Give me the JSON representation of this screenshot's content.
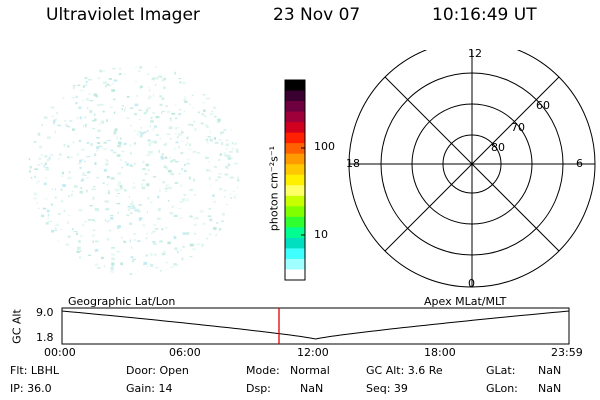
{
  "header": {
    "instrument": "Ultraviolet Imager",
    "date": "23 Nov 07",
    "time": "10:16:49 UT"
  },
  "colorbar": {
    "unit_label": "photon cm⁻²s⁻¹",
    "tick_100": "100",
    "tick_10": "10",
    "colors": [
      "#000000",
      "#3a0030",
      "#6e0040",
      "#a0003a",
      "#d0001e",
      "#ff2000",
      "#ff6000",
      "#ff9a00",
      "#ffc800",
      "#fff000",
      "#ffff66",
      "#c8ff00",
      "#80ff00",
      "#30ff30",
      "#00ff90",
      "#00e0c0",
      "#40ffff",
      "#a0ffff",
      "#ffffff"
    ]
  },
  "polar_grid": {
    "mlt_labels": {
      "top": "12",
      "bottom": "0",
      "left": "18",
      "right": "6"
    },
    "lat_labels": [
      "60",
      "70",
      "80"
    ]
  },
  "track": {
    "left_label": "Geographic Lat/Lon",
    "right_label": "Apex MLat/MLT",
    "axis_label": "GC Alt",
    "y_top": "9.0",
    "y_bottom": "1.8",
    "time_ticks": [
      "00:00",
      "06:00",
      "12:00",
      "18:00",
      "23:59"
    ],
    "marker_time_fraction": 0.428
  },
  "status": {
    "flt": "Flt: LBHL",
    "ip": "IP: 36.0",
    "door": "Door: Open",
    "gain": "Gain: 14",
    "mode_label": "Mode:",
    "mode_value": "Normal",
    "dsp_label": "Dsp:",
    "dsp_value": "NaN",
    "gc_alt": "GC Alt: 3.6 Re",
    "seq": "Seq: 39",
    "glat_label": "GLat:",
    "glat_value": "NaN",
    "glon_label": "GLon:",
    "glon_value": "NaN"
  }
}
